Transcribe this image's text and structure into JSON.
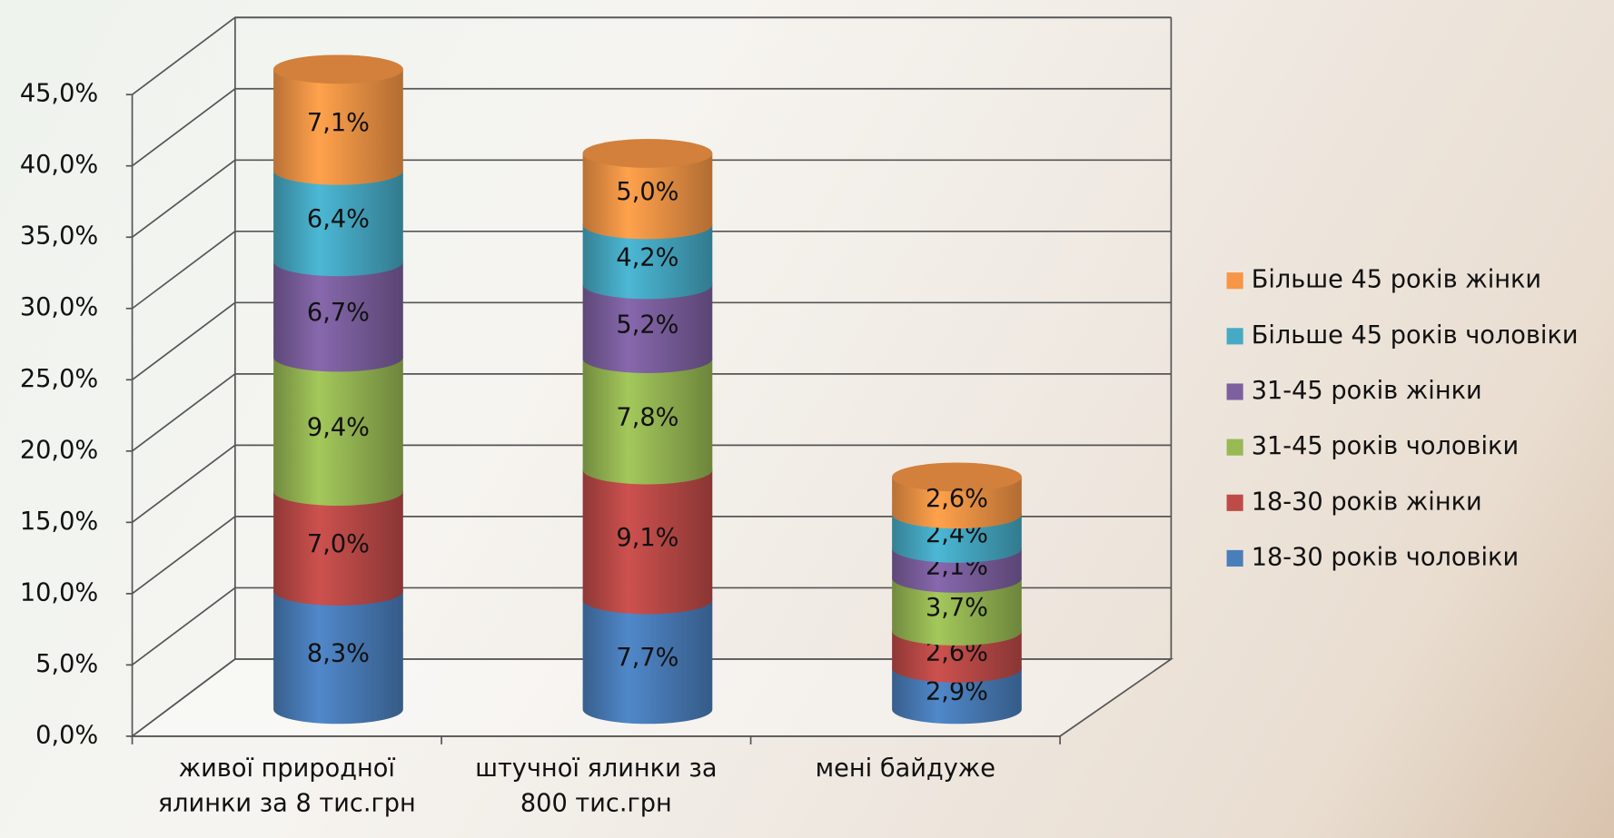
{
  "chart_data": {
    "type": "stacked-cylinder",
    "categories": [
      "живої природної ялинки за 8 тис.грн",
      "штучної ялинки за 800 тис.грн",
      "мені байдуже"
    ],
    "series": [
      {
        "name": "18-30 років чоловіки",
        "color": "#4a7ebb",
        "values": [
          8.3,
          7.7,
          2.9
        ],
        "value_labels": [
          "8,3%",
          "7,7%",
          "2,9%"
        ]
      },
      {
        "name": "18-30 років жінки",
        "color": "#be4b48",
        "values": [
          7.0,
          9.1,
          2.6
        ],
        "value_labels": [
          "7,0%",
          "9,1%",
          "2,6%"
        ]
      },
      {
        "name": "31-45 років чоловіки",
        "color": "#98b954",
        "values": [
          9.4,
          7.8,
          3.7
        ],
        "value_labels": [
          "9,4%",
          "7,8%",
          "3,7%"
        ]
      },
      {
        "name": "31-45 років жінки",
        "color": "#7d60a0",
        "values": [
          6.7,
          5.2,
          2.1
        ],
        "value_labels": [
          "6,7%",
          "5,2%",
          "2,1%"
        ]
      },
      {
        "name": "Більше 45 років чоловіки",
        "color": "#46aac5",
        "values": [
          6.4,
          4.2,
          2.4
        ],
        "value_labels": [
          "6,4%",
          "4,2%",
          "2,4%"
        ]
      },
      {
        "name": "Більше 45 років жінки",
        "color": "#f79646",
        "values": [
          7.1,
          5.0,
          2.6
        ],
        "value_labels": [
          "7,1%",
          "5,0%",
          "2,6%"
        ]
      }
    ],
    "ylim": [
      0,
      45
    ],
    "yticks": [
      {
        "value": 0,
        "label": "0,0%"
      },
      {
        "value": 5,
        "label": "5,0%"
      },
      {
        "value": 10,
        "label": "10,0%"
      },
      {
        "value": 15,
        "label": "15,0%"
      },
      {
        "value": 20,
        "label": "20,0%"
      },
      {
        "value": 25,
        "label": "25,0%"
      },
      {
        "value": 30,
        "label": "30,0%"
      },
      {
        "value": 35,
        "label": "35,0%"
      },
      {
        "value": 40,
        "label": "40,0%"
      },
      {
        "value": 45,
        "label": "45,0%"
      }
    ],
    "grid": true,
    "legend": "right"
  }
}
